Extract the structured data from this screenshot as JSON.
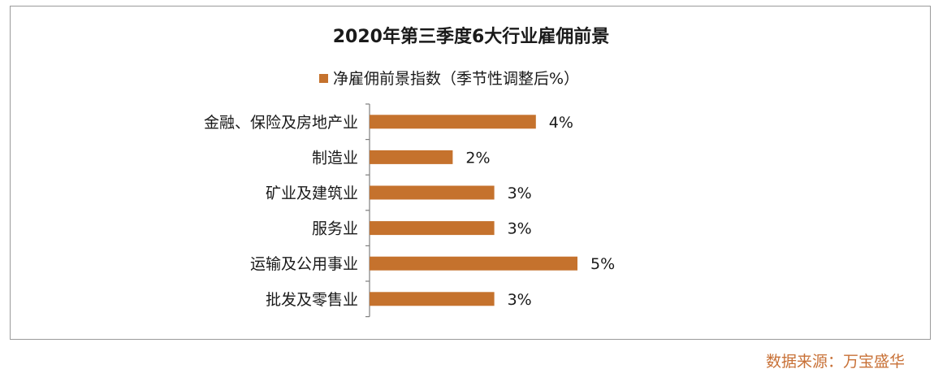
{
  "chart_data": {
    "type": "bar",
    "orientation": "horizontal",
    "title": "2020年第三季度6大行业雇佣前景",
    "legend": "top",
    "categories": [
      "金融、保险及房地产业",
      "制造业",
      "矿业及建筑业",
      "服务业",
      "运输及公用事业",
      "批发及零售业"
    ],
    "series": [
      {
        "name": "净雇佣前景指数（季节性调整后%）",
        "values": [
          4,
          2,
          3,
          3,
          5,
          3
        ],
        "labels": [
          "4%",
          "2%",
          "3%",
          "3%",
          "5%",
          "3%"
        ],
        "color": "#c5722d"
      }
    ],
    "xlim": [
      0,
      5
    ],
    "grid": false
  },
  "source": "数据来源：万宝盛华"
}
